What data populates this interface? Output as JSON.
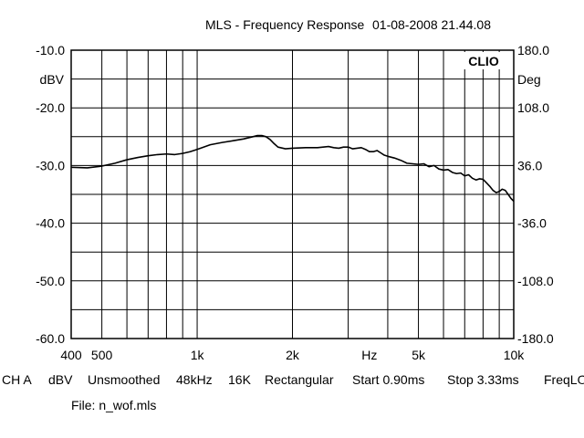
{
  "chart_data": {
    "type": "line",
    "title": "MLS - Frequency Response",
    "timestamp": "01-08-2008 21.44.08",
    "brand": "CLIO",
    "x_scale": "log",
    "xlim": [
      400,
      10000
    ],
    "ylim": [
      -60,
      -10
    ],
    "y2lim": [
      -180,
      180
    ],
    "grid": true,
    "ylabel": "dBV",
    "y2label": "Deg",
    "y_ticks": [
      {
        "value": -10,
        "label": "-10.0"
      },
      {
        "value": -20,
        "label": "-20.0"
      },
      {
        "value": -30,
        "label": "-30.0"
      },
      {
        "value": -40,
        "label": "-40.0"
      },
      {
        "value": -50,
        "label": "-50.0"
      },
      {
        "value": -60,
        "label": "-60.0"
      }
    ],
    "y2_ticks": [
      {
        "value": 180,
        "label": "180.0"
      },
      {
        "value": 108,
        "label": "108.0"
      },
      {
        "value": 36,
        "label": "36.0"
      },
      {
        "value": -36,
        "label": "-36.0"
      },
      {
        "value": -108,
        "label": "-108.0"
      },
      {
        "value": -180,
        "label": "-180.0"
      }
    ],
    "x_ticks": [
      {
        "value": 400,
        "label": "400"
      },
      {
        "value": 500,
        "label": "500"
      },
      {
        "value": 1000,
        "label": "1k"
      },
      {
        "value": 2000,
        "label": "2k"
      },
      {
        "value": 3500,
        "label": "Hz"
      },
      {
        "value": 5000,
        "label": "5k"
      },
      {
        "value": 10000,
        "label": "10k"
      }
    ],
    "series": [
      {
        "color": "#000000",
        "x": [
          400,
          450,
          500,
          550,
          600,
          650,
          700,
          750,
          800,
          850,
          900,
          950,
          1000,
          1050,
          1100,
          1200,
          1300,
          1400,
          1500,
          1550,
          1600,
          1650,
          1700,
          1750,
          1800,
          1900,
          2000,
          2200,
          2400,
          2600,
          2700,
          2800,
          2900,
          3000,
          3100,
          3200,
          3300,
          3400,
          3500,
          3600,
          3700,
          3800,
          3900,
          4000,
          4200,
          4400,
          4600,
          4800,
          5000,
          5200,
          5400,
          5600,
          5800,
          6000,
          6200,
          6400,
          6600,
          6800,
          7000,
          7200,
          7400,
          7600,
          7800,
          8000,
          8200,
          8400,
          8600,
          8800,
          9000,
          9200,
          9400,
          9600,
          9800,
          10000
        ],
        "y": [
          -30.3,
          -30.4,
          -30.1,
          -29.6,
          -29.0,
          -28.6,
          -28.3,
          -28.1,
          -28.0,
          -28.1,
          -27.9,
          -27.6,
          -27.2,
          -26.8,
          -26.4,
          -26.0,
          -25.7,
          -25.4,
          -25.0,
          -24.8,
          -24.8,
          -25.0,
          -25.5,
          -26.2,
          -26.8,
          -27.1,
          -27.0,
          -26.9,
          -26.9,
          -26.7,
          -26.9,
          -27.0,
          -26.8,
          -26.8,
          -27.1,
          -27.0,
          -26.9,
          -27.2,
          -27.6,
          -27.6,
          -27.4,
          -27.8,
          -28.2,
          -28.4,
          -28.7,
          -29.1,
          -29.6,
          -29.7,
          -29.8,
          -29.7,
          -30.2,
          -30.0,
          -30.6,
          -30.8,
          -30.7,
          -31.2,
          -31.4,
          -31.3,
          -31.8,
          -31.6,
          -32.2,
          -32.5,
          -32.3,
          -32.4,
          -33.0,
          -33.6,
          -34.3,
          -34.7,
          -34.5,
          -34.1,
          -34.3,
          -35.0,
          -35.7,
          -36.2
        ]
      }
    ]
  },
  "status_bar": {
    "channel": "CH A",
    "unit": "dBV",
    "smoothing": "Unsmoothed",
    "sample_rate": "48kHz",
    "size": "16K",
    "window": "Rectangular",
    "start": "Start 0.90ms",
    "stop": "Stop 3.33ms",
    "freq": "FreqLO"
  },
  "file_label": "File: n_wof.mls"
}
